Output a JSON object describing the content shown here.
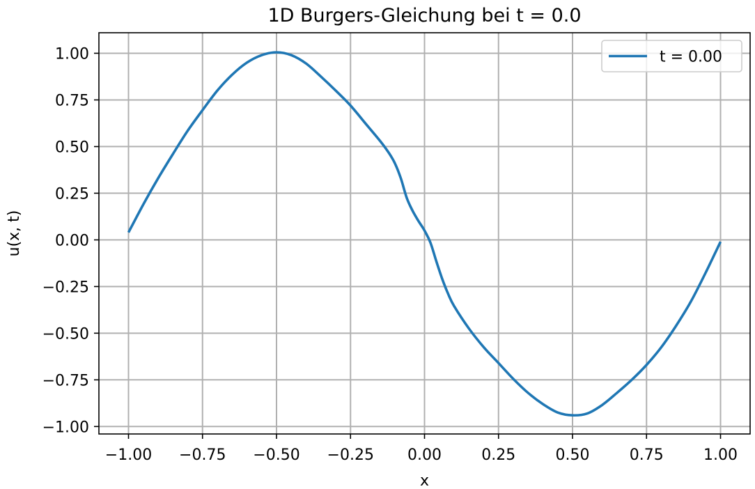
{
  "chart_data": {
    "type": "line",
    "title": "1D Burgers-Gleichung bei t = 0.0",
    "xlabel": "x",
    "ylabel": "u(x, t)",
    "xlim": [
      -1.1,
      1.1
    ],
    "ylim": [
      -1.04,
      1.11
    ],
    "x_ticks": [
      -1.0,
      -0.75,
      -0.5,
      -0.25,
      0.0,
      0.25,
      0.5,
      0.75,
      1.0
    ],
    "x_tick_labels": [
      "−1.00",
      "−0.75",
      "−0.50",
      "−0.25",
      "0.00",
      "0.25",
      "0.50",
      "0.75",
      "1.00"
    ],
    "y_ticks": [
      1.0,
      0.75,
      0.5,
      0.25,
      0.0,
      -0.25,
      -0.5,
      -0.75,
      -1.0
    ],
    "y_tick_labels": [
      "1.00",
      "0.75",
      "0.50",
      "0.25",
      "0.00",
      "−0.25",
      "−0.50",
      "−0.75",
      "−1.00"
    ],
    "grid": true,
    "legend_position": "upper right",
    "series": [
      {
        "name": "t = 0.00",
        "color": "#1f77b4",
        "x": [
          -1.0,
          -0.95,
          -0.9,
          -0.85,
          -0.8,
          -0.75,
          -0.7,
          -0.65,
          -0.6,
          -0.55,
          -0.5,
          -0.45,
          -0.4,
          -0.35,
          -0.3,
          -0.25,
          -0.2,
          -0.15,
          -0.12,
          -0.1,
          -0.08,
          -0.06,
          -0.04,
          -0.02,
          0.0,
          0.02,
          0.04,
          0.06,
          0.08,
          0.1,
          0.15,
          0.2,
          0.25,
          0.3,
          0.35,
          0.4,
          0.45,
          0.5,
          0.55,
          0.6,
          0.65,
          0.7,
          0.75,
          0.8,
          0.85,
          0.9,
          0.95,
          1.0
        ],
        "y": [
          0.04,
          0.19,
          0.33,
          0.46,
          0.585,
          0.695,
          0.8,
          0.885,
          0.95,
          0.99,
          1.005,
          0.99,
          0.945,
          0.875,
          0.8,
          0.72,
          0.625,
          0.53,
          0.465,
          0.41,
          0.33,
          0.225,
          0.155,
          0.1,
          0.05,
          -0.015,
          -0.115,
          -0.21,
          -0.29,
          -0.355,
          -0.475,
          -0.575,
          -0.66,
          -0.745,
          -0.82,
          -0.88,
          -0.925,
          -0.94,
          -0.93,
          -0.885,
          -0.82,
          -0.75,
          -0.67,
          -0.575,
          -0.46,
          -0.33,
          -0.175,
          -0.01
        ]
      }
    ]
  }
}
